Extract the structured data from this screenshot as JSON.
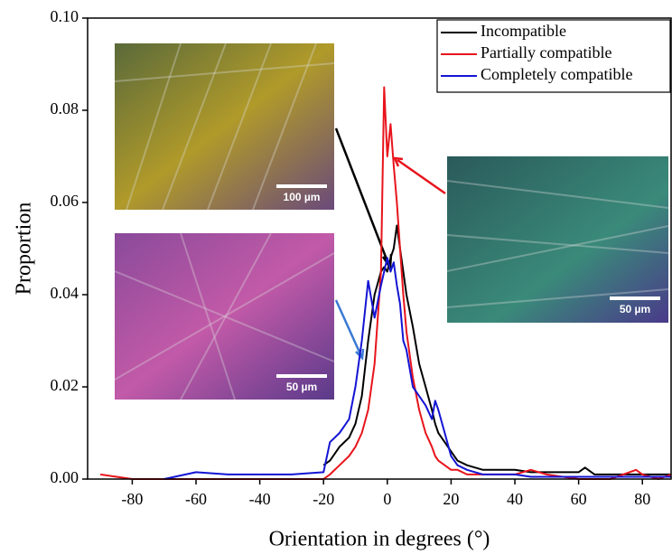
{
  "chart_data": {
    "type": "line",
    "x_label": "Orientation in degrees (°)",
    "y_label": "Proportion",
    "x": [
      -90,
      -80,
      -70,
      -60,
      -50,
      -40,
      -30,
      -20,
      -18,
      -15,
      -12,
      -10,
      -8,
      -6,
      -4,
      -2,
      -1,
      0,
      1,
      2,
      3,
      4,
      5,
      6,
      8,
      10,
      12,
      14,
      15,
      16,
      18,
      20,
      22,
      25,
      30,
      40,
      45,
      50,
      60,
      62,
      65,
      70,
      78,
      80,
      85,
      89
    ],
    "series": [
      {
        "name": "Incompatible",
        "color": "#000000",
        "values": [
          null,
          null,
          null,
          null,
          null,
          null,
          null,
          0.003,
          0.004,
          0.007,
          0.009,
          0.012,
          0.018,
          0.03,
          0.04,
          0.045,
          0.046,
          0.045,
          0.048,
          0.05,
          0.055,
          0.05,
          0.045,
          0.04,
          0.033,
          0.025,
          0.02,
          0.015,
          0.012,
          0.01,
          0.008,
          0.006,
          0.004,
          0.003,
          0.002,
          0.002,
          0.0015,
          0.0015,
          0.0015,
          0.0025,
          0.001,
          0.001,
          0.001,
          0.001,
          0.001,
          0.001
        ]
      },
      {
        "name": "Partially compatible",
        "color": "#e8141c",
        "values": [
          0.001,
          0,
          0,
          0,
          0,
          0,
          0,
          0,
          0.001,
          0.003,
          0.005,
          0.007,
          0.01,
          0.015,
          0.025,
          0.045,
          0.085,
          0.07,
          0.077,
          0.068,
          0.06,
          0.05,
          0.04,
          0.032,
          0.022,
          0.015,
          0.01,
          0.007,
          0.005,
          0.004,
          0.003,
          0.002,
          0.002,
          0.001,
          0.001,
          0.001,
          0.002,
          0.001,
          0,
          0,
          0,
          0,
          0.002,
          0.001,
          0,
          0.001
        ]
      },
      {
        "name": "Completely compatible",
        "color": "#1414d4",
        "values": [
          null,
          null,
          0,
          0.0015,
          0.001,
          0.001,
          0.001,
          0.0015,
          0.008,
          0.01,
          0.013,
          0.02,
          0.03,
          0.043,
          0.035,
          0.042,
          0.045,
          0.048,
          0.045,
          0.047,
          0.042,
          0.038,
          0.03,
          0.028,
          0.02,
          0.018,
          0.016,
          0.013,
          0.017,
          0.015,
          0.01,
          0.005,
          0.003,
          0.002,
          0.001,
          0.001,
          0.0005,
          0.0005,
          0.0005,
          0.0005,
          0.0005,
          0.0005,
          0.0005,
          0.0005,
          0.0005,
          0.0005
        ]
      }
    ],
    "xlim": [
      -94,
      89
    ],
    "xticks": [
      -80,
      -60,
      -40,
      -20,
      0,
      20,
      40,
      60,
      80
    ],
    "ylim": [
      0,
      0.1
    ],
    "yticks": [
      {
        "value": 0,
        "label": "0.00"
      },
      {
        "value": 0.02,
        "label": "0.02"
      },
      {
        "value": 0.04,
        "label": "0.04"
      },
      {
        "value": 0.06,
        "label": "0.06"
      },
      {
        "value": 0.08,
        "label": "0.08"
      },
      {
        "value": 0.1,
        "label": "0.10"
      }
    ],
    "legend": "top-right",
    "annotations": [
      "100 µm",
      "50 µm",
      "50 µm"
    ]
  }
}
